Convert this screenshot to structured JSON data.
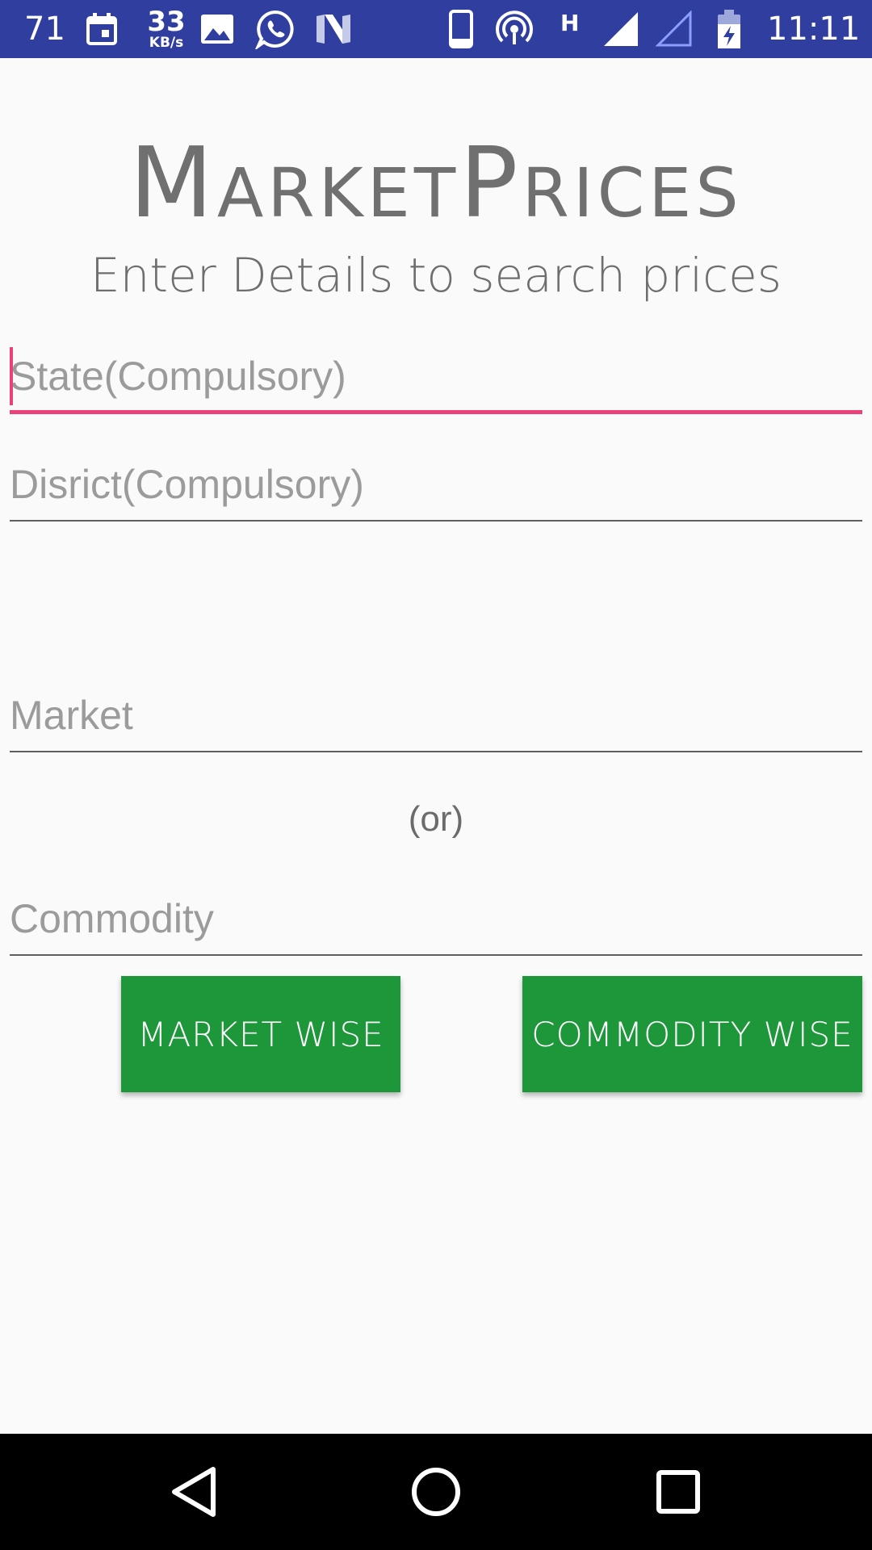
{
  "status_bar": {
    "notification_count": "71",
    "net_speed_value": "33",
    "net_speed_unit": "KB/s",
    "network_type": "H",
    "time": "11:11",
    "icons": [
      "calendar-icon",
      "image-icon",
      "whatsapp-icon",
      "n-app-icon",
      "phone-icon",
      "hotspot-icon",
      "signal-icon",
      "signal-empty-icon",
      "battery-charging-icon"
    ]
  },
  "header": {
    "title": "MarketPrices",
    "subtitle": "Enter Details to search prices"
  },
  "form": {
    "state_placeholder": "State(Compulsory)",
    "district_placeholder": "Disrict(Compulsory)",
    "market_placeholder": "Market",
    "or_label": "(or)",
    "commodity_placeholder": "Commodity"
  },
  "buttons": {
    "market_wise": "MARKET WISE",
    "commodity_wise": "COMMODITY WISE"
  },
  "colors": {
    "status_bar": "#303f9f",
    "accent": "#ec407a",
    "button": "#1e963a",
    "background": "#fafafa"
  },
  "nav_bar": {
    "icons": [
      "back-icon",
      "home-icon",
      "recents-icon"
    ]
  }
}
